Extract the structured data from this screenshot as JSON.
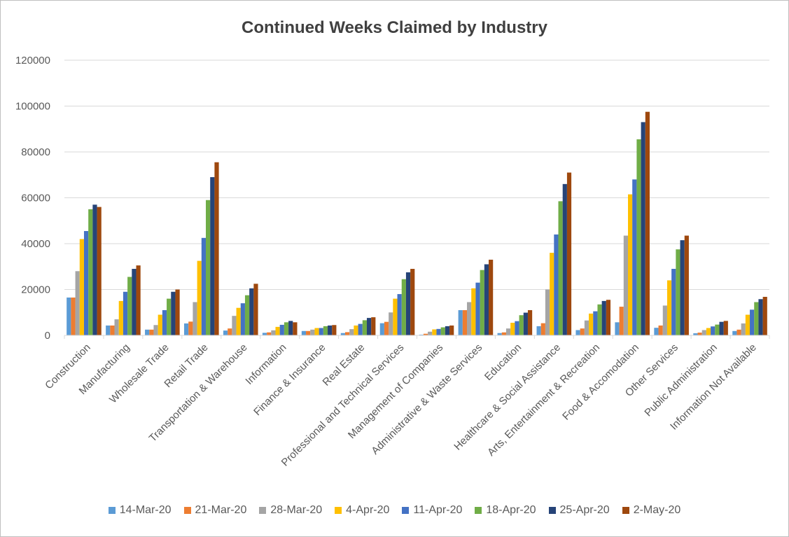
{
  "chart_data": {
    "type": "bar",
    "title": "Continued Weeks Claimed by Industry",
    "xlabel": "",
    "ylabel": "",
    "ylim": [
      0,
      120000
    ],
    "yticks": [
      "0",
      "20000",
      "40000",
      "60000",
      "80000",
      "100000",
      "120000"
    ],
    "grid": true,
    "legend_position": "bottom",
    "categories": [
      "Construction",
      "Manufacturing",
      "Wholesale Trade",
      "Retail Trade",
      "Transportation & Warehouse",
      "Information",
      "Finance & Insurance",
      "Real Estate",
      "Professional and Technical Services",
      "Management of Companies",
      "Administrative & Waste Services",
      "Education",
      "Healthcare & Social Assistance",
      "Arts, Entertainment & Recreation",
      "Food & Accomodation",
      "Other Services",
      "Public Administration",
      "Information Not Available"
    ],
    "series": [
      {
        "name": "14-Mar-20",
        "color": "#5b9bd5",
        "values": [
          16500,
          4300,
          2500,
          5200,
          2100,
          1100,
          1900,
          1000,
          5300,
          300,
          11000,
          1000,
          4000,
          2300,
          5700,
          3300,
          900,
          1900
        ]
      },
      {
        "name": "21-Mar-20",
        "color": "#ed7d31",
        "values": [
          16500,
          4300,
          2500,
          6000,
          3000,
          1300,
          1900,
          1400,
          5900,
          700,
          11000,
          1300,
          5300,
          3000,
          12500,
          4300,
          1200,
          2500
        ]
      },
      {
        "name": "28-Mar-20",
        "color": "#a5a5a5",
        "values": [
          28000,
          7000,
          4500,
          14500,
          8500,
          2200,
          2500,
          2700,
          10000,
          1600,
          14500,
          3000,
          20000,
          6500,
          43500,
          13000,
          2300,
          5200
        ]
      },
      {
        "name": "4-Apr-20",
        "color": "#ffc000",
        "values": [
          42000,
          15000,
          9000,
          32500,
          12000,
          3700,
          3200,
          4300,
          16000,
          2600,
          20500,
          5500,
          36000,
          9500,
          61500,
          24000,
          3200,
          9000
        ]
      },
      {
        "name": "11-Apr-20",
        "color": "#4472c4",
        "values": [
          45500,
          19000,
          11000,
          42500,
          14000,
          4600,
          3200,
          5000,
          18000,
          2800,
          23000,
          6200,
          44000,
          10500,
          68000,
          29000,
          3900,
          11200
        ]
      },
      {
        "name": "18-Apr-20",
        "color": "#70ad47",
        "values": [
          55000,
          25500,
          16000,
          59000,
          17500,
          5700,
          4000,
          6600,
          24500,
          3500,
          28500,
          8800,
          58500,
          13500,
          85500,
          37500,
          4700,
          14500
        ]
      },
      {
        "name": "25-Apr-20",
        "color": "#264478",
        "values": [
          57000,
          29000,
          19000,
          69000,
          20500,
          6300,
          4300,
          7600,
          27500,
          4000,
          31000,
          9900,
          66000,
          15000,
          93000,
          41500,
          5900,
          15800
        ]
      },
      {
        "name": "2-May-20",
        "color": "#9e480e",
        "values": [
          56000,
          30500,
          20000,
          75500,
          22500,
          5700,
          4500,
          7900,
          29000,
          4300,
          33000,
          11000,
          71000,
          15500,
          97500,
          43500,
          6300,
          16800
        ]
      }
    ]
  }
}
